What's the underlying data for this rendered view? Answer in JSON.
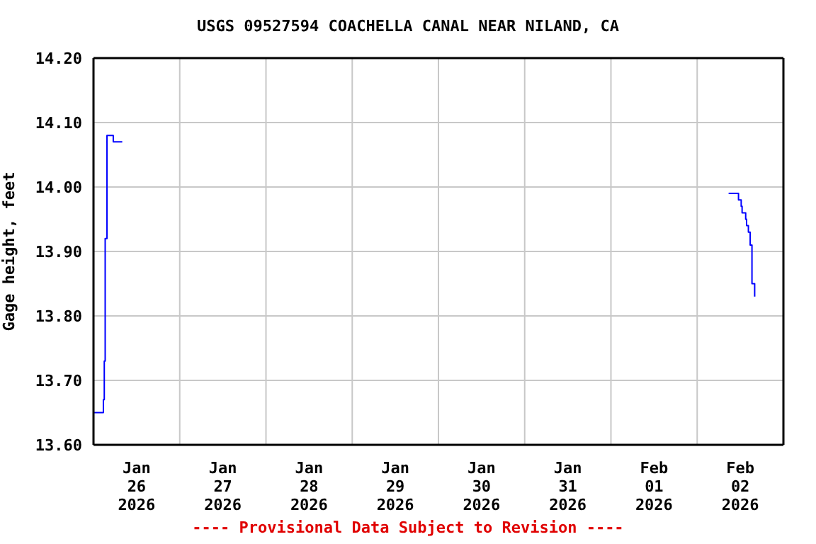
{
  "chart_data": {
    "type": "step",
    "title": "USGS 09527594 COACHELLA CANAL NEAR NILAND, CA",
    "ylabel": "Gage height, feet",
    "annotations": [
      "---- Provisional Data Subject to Revision ----"
    ],
    "x": [
      "2026-01-26T00:00",
      "2026-01-26T02:45",
      "2026-01-26T03:00",
      "2026-01-26T03:15",
      "2026-01-26T03:45",
      "2026-01-26T05:30",
      "2026-01-26T08:00",
      "2026-01-29T00:00",
      "2026-02-02T08:45",
      "2026-02-02T11:30",
      "2026-02-02T12:15",
      "2026-02-02T12:30",
      "2026-02-02T13:30",
      "2026-02-02T13:45",
      "2026-02-02T14:15",
      "2026-02-02T14:45",
      "2026-02-02T15:15",
      "2026-02-02T16:00"
    ],
    "series": [
      {
        "color": "#0000ff",
        "values": [
          13.65,
          13.67,
          13.73,
          13.92,
          14.08,
          14.07,
          14.07,
          null,
          13.99,
          13.98,
          13.97,
          13.96,
          13.95,
          13.94,
          13.93,
          13.91,
          13.85,
          13.83
        ]
      }
    ],
    "xlim": [
      "2026-01-26T00:00",
      "2026-02-03T00:00"
    ],
    "xticks": [
      {
        "value": "2026-01-26T00:00",
        "label": null
      },
      {
        "value": "2026-01-26T12:00",
        "label": "Jan\n26\n2026"
      },
      {
        "value": "2026-01-27T00:00",
        "label": null
      },
      {
        "value": "2026-01-27T12:00",
        "label": "Jan\n27\n2026"
      },
      {
        "value": "2026-01-28T00:00",
        "label": null
      },
      {
        "value": "2026-01-28T12:00",
        "label": "Jan\n28\n2026"
      },
      {
        "value": "2026-01-29T00:00",
        "label": null
      },
      {
        "value": "2026-01-29T12:00",
        "label": "Jan\n29\n2026"
      },
      {
        "value": "2026-01-30T00:00",
        "label": null
      },
      {
        "value": "2026-01-30T12:00",
        "label": "Jan\n30\n2026"
      },
      {
        "value": "2026-01-31T00:00",
        "label": null
      },
      {
        "value": "2026-01-31T12:00",
        "label": "Jan\n31\n2026"
      },
      {
        "value": "2026-02-01T00:00",
        "label": null
      },
      {
        "value": "2026-02-01T12:00",
        "label": "Feb\n01\n2026"
      },
      {
        "value": "2026-02-02T00:00",
        "label": null
      },
      {
        "value": "2026-02-02T12:00",
        "label": "Feb\n02\n2026"
      },
      {
        "value": "2026-02-03T00:00",
        "label": null
      }
    ],
    "ylim": [
      13.6,
      14.2
    ],
    "yticks": [
      {
        "value": 13.6,
        "label": "13.60"
      },
      {
        "value": 13.7,
        "label": "13.70"
      },
      {
        "value": 13.8,
        "label": "13.80"
      },
      {
        "value": 13.9,
        "label": "13.90"
      },
      {
        "value": 14.0,
        "label": "14.00"
      },
      {
        "value": 14.1,
        "label": "14.10"
      },
      {
        "value": 14.2,
        "label": "14.20"
      }
    ],
    "grid": true,
    "marker": "none",
    "line_style": "solid"
  }
}
